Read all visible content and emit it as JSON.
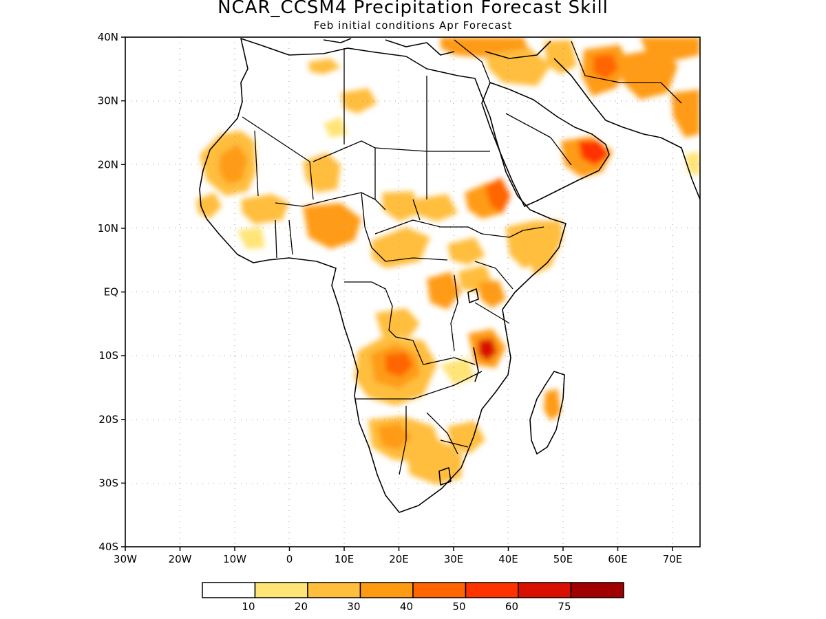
{
  "header": {
    "title": "NCAR_CCSM4 Precipitation Forecast Skill",
    "subtitle": "Feb initial conditions  Apr Forecast"
  },
  "axes": {
    "y_ticks": [
      "40N",
      "30N",
      "20N",
      "10N",
      "EQ",
      "10S",
      "20S",
      "30S",
      "40S"
    ],
    "x_ticks": [
      "30W",
      "20W",
      "10W",
      "0",
      "10E",
      "20E",
      "30E",
      "40E",
      "50E",
      "60E",
      "70E"
    ]
  },
  "colorbar": {
    "colors": [
      "#ffffff",
      "#ffe476",
      "#ffbe3c",
      "#ff9b12",
      "#ff6500",
      "#ff3300",
      "#d91000",
      "#a00000"
    ],
    "labels": [
      "10",
      "20",
      "30",
      "40",
      "50",
      "60",
      "75"
    ]
  },
  "map_data": {
    "region": "Africa",
    "lon_range": [
      -30,
      75
    ],
    "lat_range": [
      -40,
      40
    ],
    "variable": "Precipitation Forecast Skill",
    "skill_hotspots": [
      {
        "lon": 20,
        "lat": -11,
        "level": "40-50"
      },
      {
        "lon": 36,
        "lat": -10,
        "level": "60-75"
      },
      {
        "lon": 38,
        "lat": 15,
        "level": "50-60"
      },
      {
        "lon": 56,
        "lat": 22,
        "level": "50-60"
      },
      {
        "lon": 57,
        "lat": 36,
        "level": "40-50"
      },
      {
        "lon": -9,
        "lat": 21,
        "level": "30-40"
      },
      {
        "lon": 8,
        "lat": 11,
        "level": "30-40"
      },
      {
        "lon": 48,
        "lat": -18,
        "level": "30-40"
      },
      {
        "lon": 22,
        "lat": -24,
        "level": "20-30"
      }
    ]
  }
}
